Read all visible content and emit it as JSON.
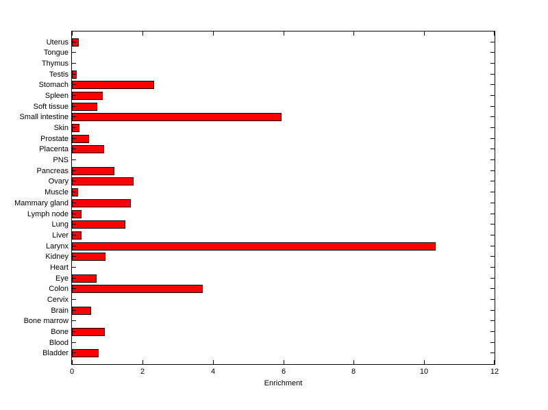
{
  "chart_data": {
    "type": "bar",
    "orientation": "horizontal",
    "title": "",
    "xlabel": "Enrichment",
    "ylabel": "",
    "xlim": [
      0,
      12
    ],
    "xticks": [
      0,
      2,
      4,
      6,
      8,
      10,
      12
    ],
    "grid": false,
    "legend": false,
    "bar_color": "#ff0000",
    "bar_edge_color": "#000000",
    "axis_color": "#000000",
    "background_color": "#ffffff",
    "categories": [
      "Uterus",
      "Tongue",
      "Thymus",
      "Testis",
      "Stomach",
      "Spleen",
      "Soft tissue",
      "Small intestine",
      "Skin",
      "Prostate",
      "Placenta",
      "PNS",
      "Pancreas",
      "Ovary",
      "Muscle",
      "Mammary gland",
      "Lymph node",
      "Lung",
      "Liver",
      "Larynx",
      "Kidney",
      "Heart",
      "Eye",
      "Colon",
      "Cervix",
      "Brain",
      "Bone marrow",
      "Bone",
      "Blood",
      "Bladder"
    ],
    "values": [
      0.2,
      0,
      0,
      0.13,
      2.33,
      0.87,
      0.71,
      5.95,
      0.21,
      0.49,
      0.92,
      0,
      1.2,
      1.76,
      0.17,
      1.68,
      0.27,
      1.51,
      0.27,
      10.32,
      0.96,
      0,
      0.7,
      3.71,
      0,
      0.54,
      0,
      0.93,
      0,
      0.76
    ]
  }
}
